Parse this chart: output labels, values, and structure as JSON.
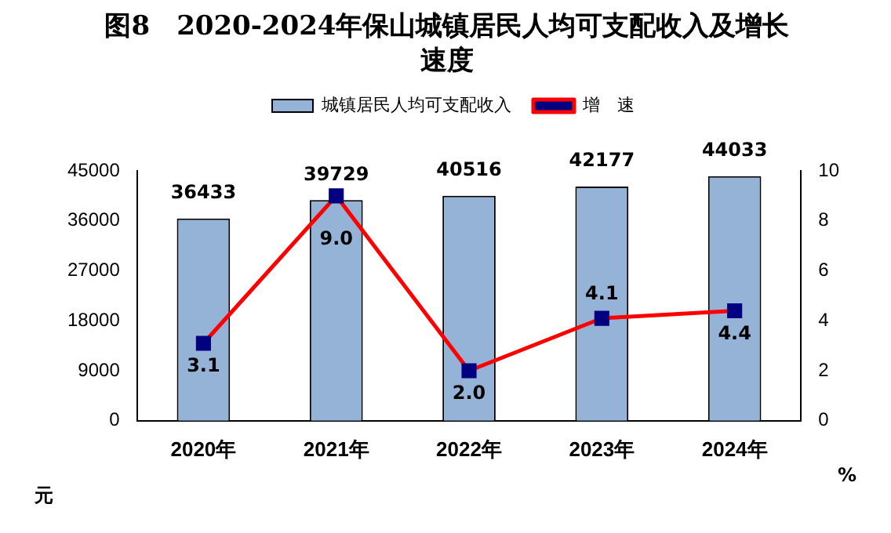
{
  "chart_data": {
    "type": "bar",
    "title": "图8　2020-2024年保山城镇居民人均可支配收入及增长速度",
    "ylabel": "元",
    "y2label": "%",
    "categories": [
      "2020年",
      "2021年",
      "2022年",
      "2023年",
      "2024年"
    ],
    "series": [
      {
        "name": "城镇居民人均可支配收入",
        "color": "#95b3d7",
        "values": [
          36433,
          39729,
          40516,
          42177,
          44033
        ]
      },
      {
        "name": "增　速",
        "type": "line",
        "axis": "y2",
        "color": "#ff0000",
        "values": [
          3.1,
          9.0,
          2.0,
          4.1,
          4.4
        ],
        "value_labels": [
          "3.1",
          "9.0",
          "2.0",
          "4.1",
          "4.4"
        ]
      }
    ],
    "ylim": [
      0,
      45000
    ],
    "yticks": [
      0,
      9000,
      18000,
      27000,
      36000,
      45000
    ],
    "y2lim": [
      0,
      10
    ],
    "y2ticks": [
      0,
      2,
      4,
      6,
      8,
      10
    ],
    "data_labels": true,
    "legend": "top",
    "marker": "square",
    "grid": false
  }
}
